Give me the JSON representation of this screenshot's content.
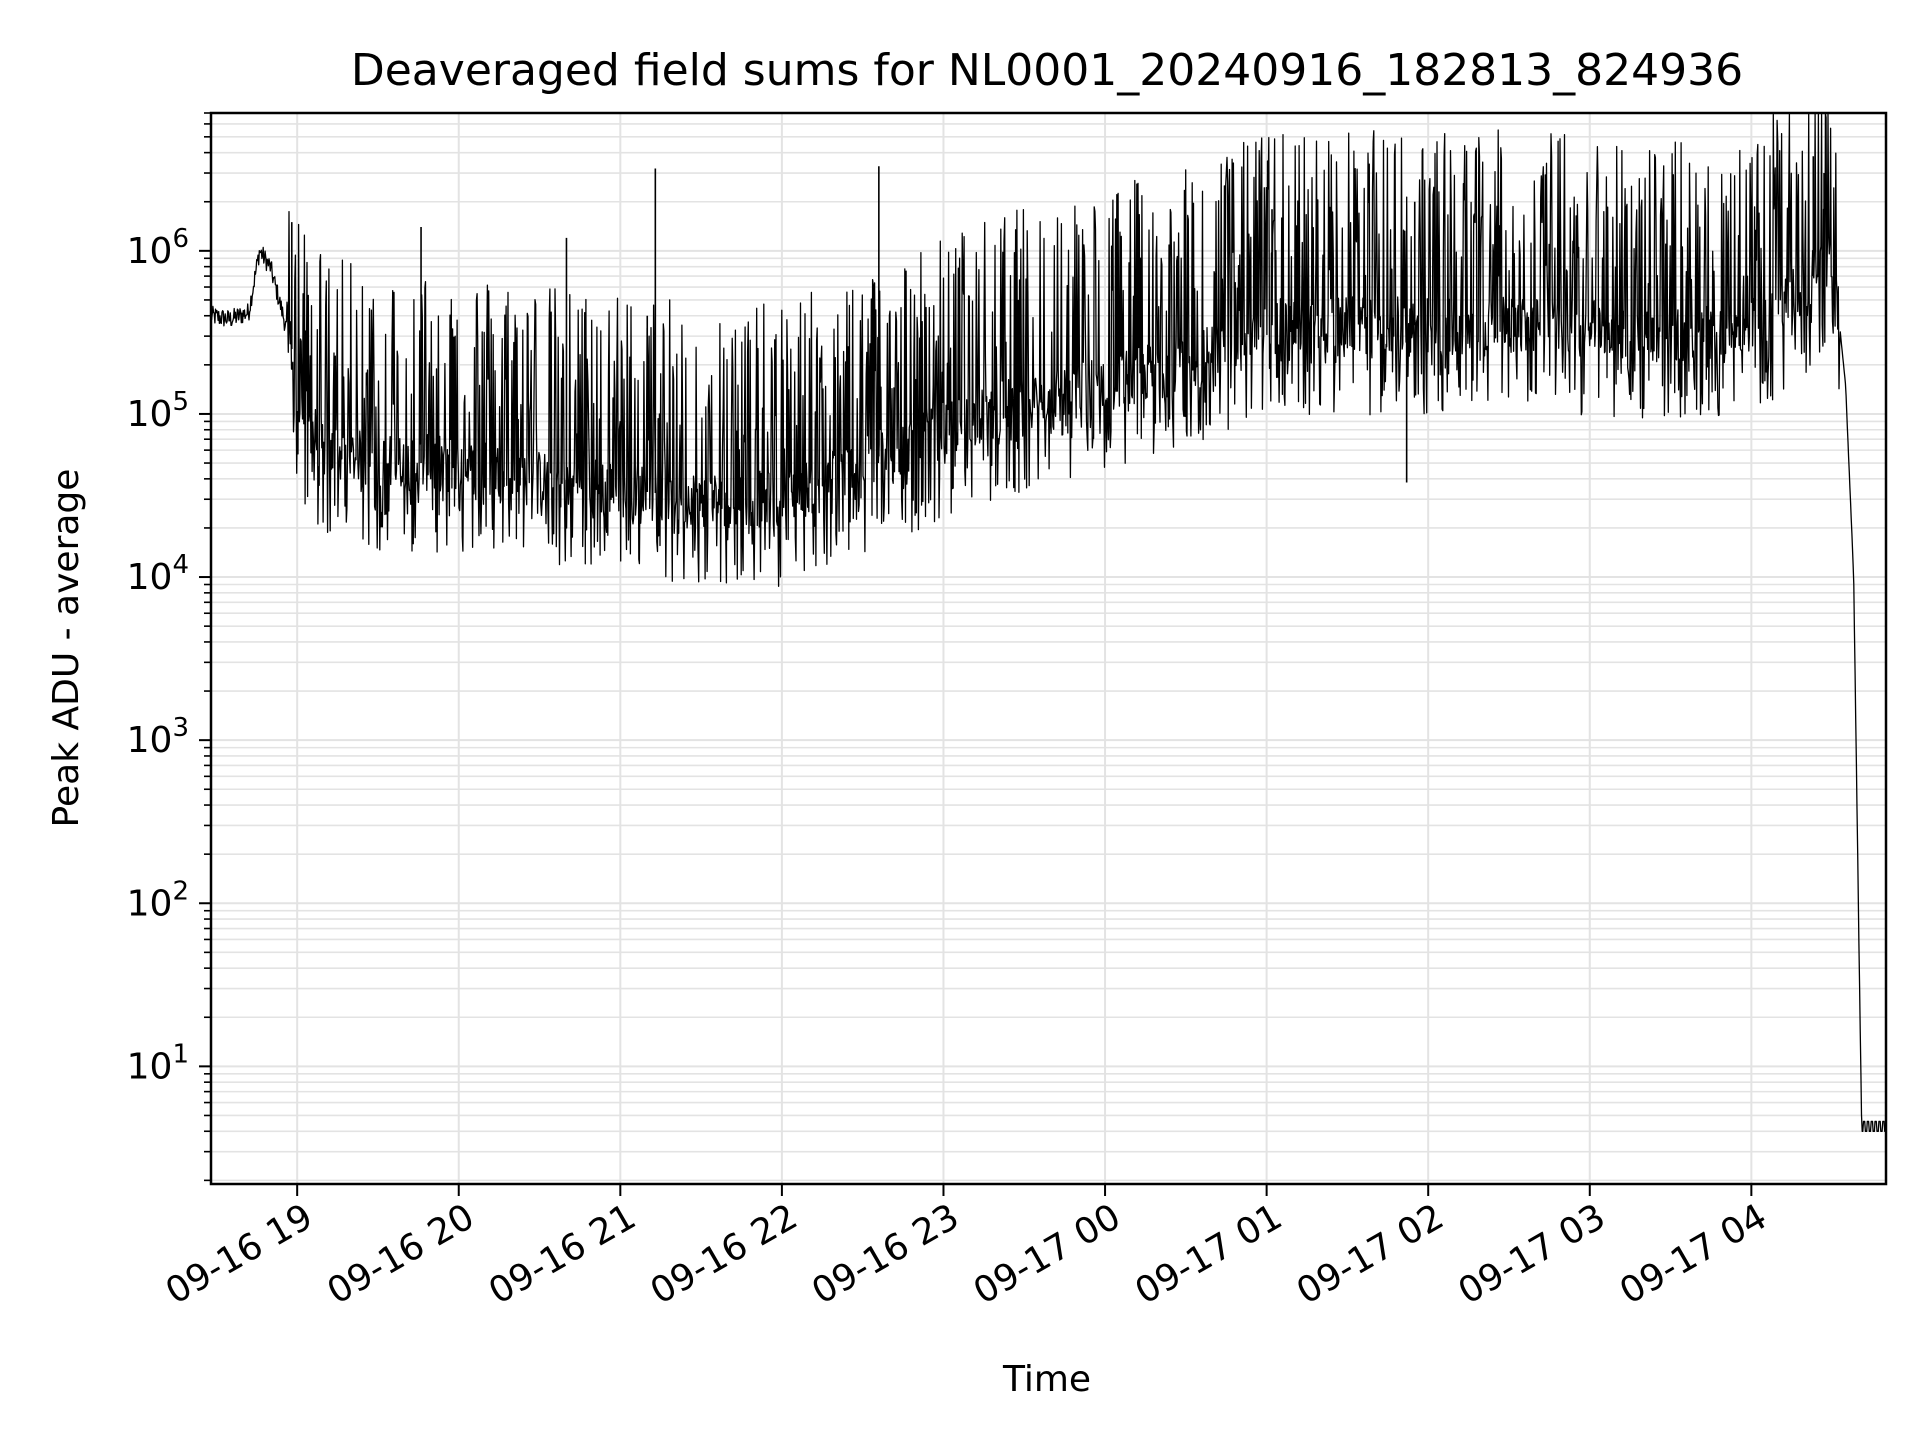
{
  "chart_data": {
    "type": "line",
    "title": "Deaveraged field sums for NL0001_20240916_182813_824936",
    "xlabel": "Time",
    "ylabel": "Peak ADU - average",
    "yscale": "log",
    "ylim": [
      1.9,
      7000000
    ],
    "xlim": [
      "2024-09-16 18:28",
      "2024-09-17 04:50"
    ],
    "grid": true,
    "line_color": "#000000",
    "x_ticks": [
      "09-16 19",
      "09-16 20",
      "09-16 21",
      "09-16 22",
      "09-16 23",
      "09-17 00",
      "09-17 01",
      "09-17 02",
      "09-17 03",
      "09-17 04"
    ],
    "y_ticks": [
      {
        "value": 10,
        "base": "10",
        "exp": "1"
      },
      {
        "value": 100,
        "base": "10",
        "exp": "2"
      },
      {
        "value": 1000,
        "base": "10",
        "exp": "3"
      },
      {
        "value": 10000,
        "base": "10",
        "exp": "4"
      },
      {
        "value": 100000,
        "base": "10",
        "exp": "5"
      },
      {
        "value": 1000000,
        "base": "10",
        "exp": "6"
      }
    ],
    "series": [
      {
        "x": [
          "2024-09-16 18:28",
          "2024-09-16 18:35",
          "2024-09-16 18:42",
          "2024-09-16 18:46",
          "2024-09-16 18:50",
          "2024-09-16 18:54",
          "2024-09-16 18:58",
          "2024-09-16 19:00",
          "2024-09-16 19:10",
          "2024-09-16 19:30",
          "2024-09-16 20:00",
          "2024-09-16 20:30",
          "2024-09-16 21:00",
          "2024-09-16 21:30",
          "2024-09-16 22:00",
          "2024-09-16 22:30",
          "2024-09-16 23:00",
          "2024-09-16 23:30",
          "2024-09-17 00:00",
          "2024-09-17 00:30",
          "2024-09-17 01:00",
          "2024-09-17 01:30",
          "2024-09-17 02:00",
          "2024-09-17 02:30",
          "2024-09-17 03:00",
          "2024-09-17 03:30",
          "2024-09-17 04:00",
          "2024-09-17 04:20",
          "2024-09-17 04:30",
          "2024-09-17 04:35",
          "2024-09-17 04:38",
          "2024-09-17 04:40",
          "2024-09-17 04:41",
          "2024-09-17 04:50"
        ],
        "y": [
          400000,
          380000,
          420000,
          1000000,
          800000,
          450000,
          250000,
          120000,
          60000,
          50000,
          50000,
          40000,
          35000,
          30000,
          30000,
          50000,
          80000,
          120000,
          160000,
          200000,
          350000,
          350000,
          350000,
          350000,
          350000,
          300000,
          350000,
          600000,
          1000000,
          150000,
          10000,
          50,
          4,
          4
        ]
      }
    ],
    "spikes": [
      {
        "x": "2024-09-16 18:58",
        "y": 1500000
      },
      {
        "x": "2024-09-16 19:46",
        "y": 1400000
      },
      {
        "x": "2024-09-16 20:40",
        "y": 1200000
      },
      {
        "x": "2024-09-16 21:13",
        "y": 3200000
      },
      {
        "x": "2024-09-16 21:10",
        "y": 400000
      },
      {
        "x": "2024-09-16 22:36",
        "y": 3300000
      },
      {
        "x": "2024-09-17 01:02",
        "y": 1800000
      },
      {
        "x": "2024-09-17 01:55",
        "y": 2000000
      },
      {
        "x": "2024-09-17 01:52",
        "y": 38000
      },
      {
        "x": "2024-09-17 04:23",
        "y": 3800000
      },
      {
        "x": "2024-09-17 04:27",
        "y": 3000000
      }
    ]
  }
}
